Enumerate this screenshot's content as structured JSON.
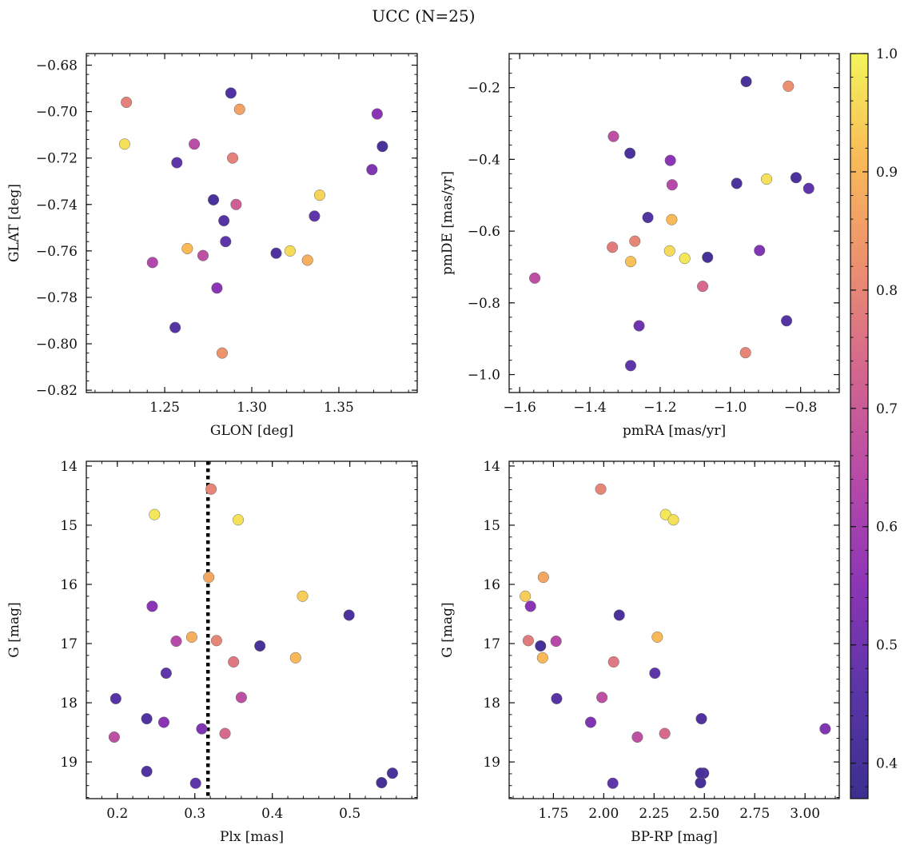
{
  "figure": {
    "title": "UCC (N=25)"
  },
  "colormap": {
    "name": "plasma",
    "stops": [
      "#3b2f8f",
      "#5a35a8",
      "#8b35b6",
      "#b74aa8",
      "#d3658f",
      "#ec8f6f",
      "#f9b958",
      "#f3f55a"
    ],
    "range": [
      0.37,
      1.0
    ],
    "ticks": [
      0.4,
      0.5,
      0.6,
      0.7,
      0.8,
      0.9,
      1.0
    ],
    "tick_labels": [
      "0.4",
      "0.5",
      "0.6",
      "0.7",
      "0.8",
      "0.9",
      "1.0"
    ]
  },
  "chart_data": [
    {
      "type": "scatter",
      "xlabel": "GLON [deg]",
      "ylabel": "GLAT [deg]",
      "xlim": [
        1.205,
        1.395
      ],
      "ylim": [
        -0.821,
        -0.675
      ],
      "xticks": [
        1.25,
        1.3,
        1.35
      ],
      "xtick_labels": [
        "1.25",
        "1.30",
        "1.35"
      ],
      "yticks": [
        -0.82,
        -0.8,
        -0.78,
        -0.76,
        -0.74,
        -0.72,
        -0.7,
        -0.68
      ],
      "ytick_labels": [
        "−0.82",
        "−0.80",
        "−0.78",
        "−0.76",
        "−0.74",
        "−0.72",
        "−0.70",
        "−0.68"
      ],
      "x": [
        1.288,
        1.228,
        1.227,
        1.257,
        1.267,
        1.289,
        1.293,
        1.372,
        1.375,
        1.369,
        1.278,
        1.284,
        1.291,
        1.339,
        1.336,
        1.285,
        1.263,
        1.272,
        1.243,
        1.314,
        1.322,
        1.332,
        1.28,
        1.256,
        1.283
      ],
      "y": [
        -0.692,
        -0.696,
        -0.714,
        -0.722,
        -0.714,
        -0.72,
        -0.699,
        -0.701,
        -0.715,
        -0.725,
        -0.738,
        -0.747,
        -0.74,
        -0.736,
        -0.745,
        -0.756,
        -0.759,
        -0.762,
        -0.765,
        -0.761,
        -0.76,
        -0.764,
        -0.776,
        -0.793,
        -0.804
      ],
      "c": [
        0.43,
        0.79,
        0.97,
        0.47,
        0.65,
        0.79,
        0.86,
        0.55,
        0.41,
        0.53,
        0.41,
        0.44,
        0.71,
        0.95,
        0.47,
        0.47,
        0.91,
        0.66,
        0.63,
        0.43,
        0.96,
        0.89,
        0.55,
        0.45,
        0.83
      ]
    },
    {
      "type": "scatter",
      "xlabel": "pmRA [mas/yr]",
      "ylabel": "pmDE [mas/yr]",
      "xlim": [
        -1.63,
        -0.69
      ],
      "ylim": [
        -1.05,
        -0.105
      ],
      "xticks": [
        -1.6,
        -1.4,
        -1.2,
        -1.0,
        -0.8
      ],
      "xtick_labels": [
        "−1.6",
        "−1.4",
        "−1.2",
        "−1.0",
        "−0.8"
      ],
      "yticks": [
        -1.0,
        -0.8,
        -0.6,
        -0.4,
        -0.2
      ],
      "ytick_labels": [
        "−1.0",
        "−0.8",
        "−0.6",
        "−0.4",
        "−0.2"
      ],
      "x": [
        -0.955,
        -0.835,
        -1.333,
        -1.286,
        -1.171,
        -1.166,
        -0.982,
        -0.897,
        -0.813,
        -0.777,
        -1.235,
        -1.167,
        -1.336,
        -1.272,
        -1.284,
        -1.173,
        -1.13,
        -1.065,
        -0.917,
        -1.557,
        -1.079,
        -0.84,
        -1.26,
        -0.957,
        -1.284
      ],
      "y": [
        -0.183,
        -0.196,
        -0.336,
        -0.383,
        -0.403,
        -0.471,
        -0.467,
        -0.455,
        -0.451,
        -0.481,
        -0.562,
        -0.568,
        -0.645,
        -0.628,
        -0.685,
        -0.655,
        -0.676,
        -0.673,
        -0.654,
        -0.731,
        -0.754,
        -0.85,
        -0.864,
        -0.939,
        -0.975
      ],
      "c": [
        0.41,
        0.82,
        0.66,
        0.42,
        0.55,
        0.64,
        0.42,
        0.97,
        0.42,
        0.47,
        0.44,
        0.91,
        0.78,
        0.8,
        0.92,
        0.96,
        0.98,
        0.4,
        0.53,
        0.66,
        0.74,
        0.44,
        0.5,
        0.8,
        0.47
      ]
    },
    {
      "type": "scatter",
      "xlabel": "Plx [mas]",
      "ylabel": "G [mag]",
      "xlim": [
        0.16,
        0.587
      ],
      "ylim": [
        19.62,
        13.92
      ],
      "y_inverted": true,
      "xticks": [
        0.2,
        0.3,
        0.4,
        0.5
      ],
      "xtick_labels": [
        "0.2",
        "0.3",
        "0.4",
        "0.5"
      ],
      "yticks": [
        14,
        15,
        16,
        17,
        18,
        19
      ],
      "ytick_labels": [
        "14",
        "15",
        "16",
        "17",
        "18",
        "19"
      ],
      "reference_line": {
        "axis": "x",
        "value": 0.317,
        "style": "dotted"
      },
      "x": [
        0.321,
        0.248,
        0.356,
        0.318,
        0.439,
        0.245,
        0.499,
        0.276,
        0.296,
        0.328,
        0.384,
        0.43,
        0.35,
        0.263,
        0.36,
        0.198,
        0.238,
        0.26,
        0.309,
        0.339,
        0.196,
        0.238,
        0.555,
        0.541,
        0.301
      ],
      "y": [
        14.39,
        14.82,
        14.91,
        15.88,
        16.2,
        16.37,
        16.52,
        16.96,
        16.89,
        16.95,
        17.04,
        17.24,
        17.31,
        17.5,
        17.91,
        17.93,
        18.27,
        18.33,
        18.44,
        18.52,
        18.58,
        19.16,
        19.19,
        19.35,
        19.36
      ],
      "c": [
        0.8,
        0.98,
        0.97,
        0.87,
        0.94,
        0.55,
        0.42,
        0.64,
        0.89,
        0.8,
        0.41,
        0.91,
        0.77,
        0.47,
        0.66,
        0.45,
        0.43,
        0.55,
        0.53,
        0.74,
        0.66,
        0.43,
        0.41,
        0.4,
        0.47
      ]
    },
    {
      "type": "scatter",
      "xlabel": "BP-RP [mag]",
      "ylabel": "G [mag]",
      "xlim": [
        1.53,
        3.17
      ],
      "ylim": [
        19.62,
        13.92
      ],
      "y_inverted": true,
      "xticks": [
        1.75,
        2.0,
        2.25,
        2.5,
        2.75,
        3.0
      ],
      "xtick_labels": [
        "1.75",
        "2.00",
        "2.25",
        "2.50",
        "2.75",
        "3.00"
      ],
      "yticks": [
        14,
        15,
        16,
        17,
        18,
        19
      ],
      "ytick_labels": [
        "14",
        "15",
        "16",
        "17",
        "18",
        "19"
      ],
      "x": [
        1.985,
        2.307,
        2.346,
        1.7,
        1.61,
        1.636,
        2.077,
        1.625,
        1.763,
        1.686,
        2.266,
        1.696,
        2.049,
        2.254,
        1.991,
        1.766,
        2.485,
        1.935,
        3.1,
        2.303,
        2.167,
        2.496,
        2.481,
        2.045,
        2.482
      ],
      "y": [
        14.39,
        14.82,
        14.91,
        15.88,
        16.2,
        16.37,
        16.52,
        16.95,
        16.96,
        17.04,
        16.89,
        17.24,
        17.31,
        17.5,
        17.91,
        17.93,
        18.27,
        18.33,
        18.44,
        18.52,
        18.58,
        19.19,
        19.35,
        19.36,
        19.19
      ],
      "c": [
        0.8,
        0.98,
        0.97,
        0.87,
        0.94,
        0.55,
        0.42,
        0.78,
        0.64,
        0.4,
        0.91,
        0.91,
        0.77,
        0.47,
        0.66,
        0.45,
        0.43,
        0.53,
        0.53,
        0.74,
        0.66,
        0.41,
        0.4,
        0.47,
        0.41
      ]
    }
  ]
}
